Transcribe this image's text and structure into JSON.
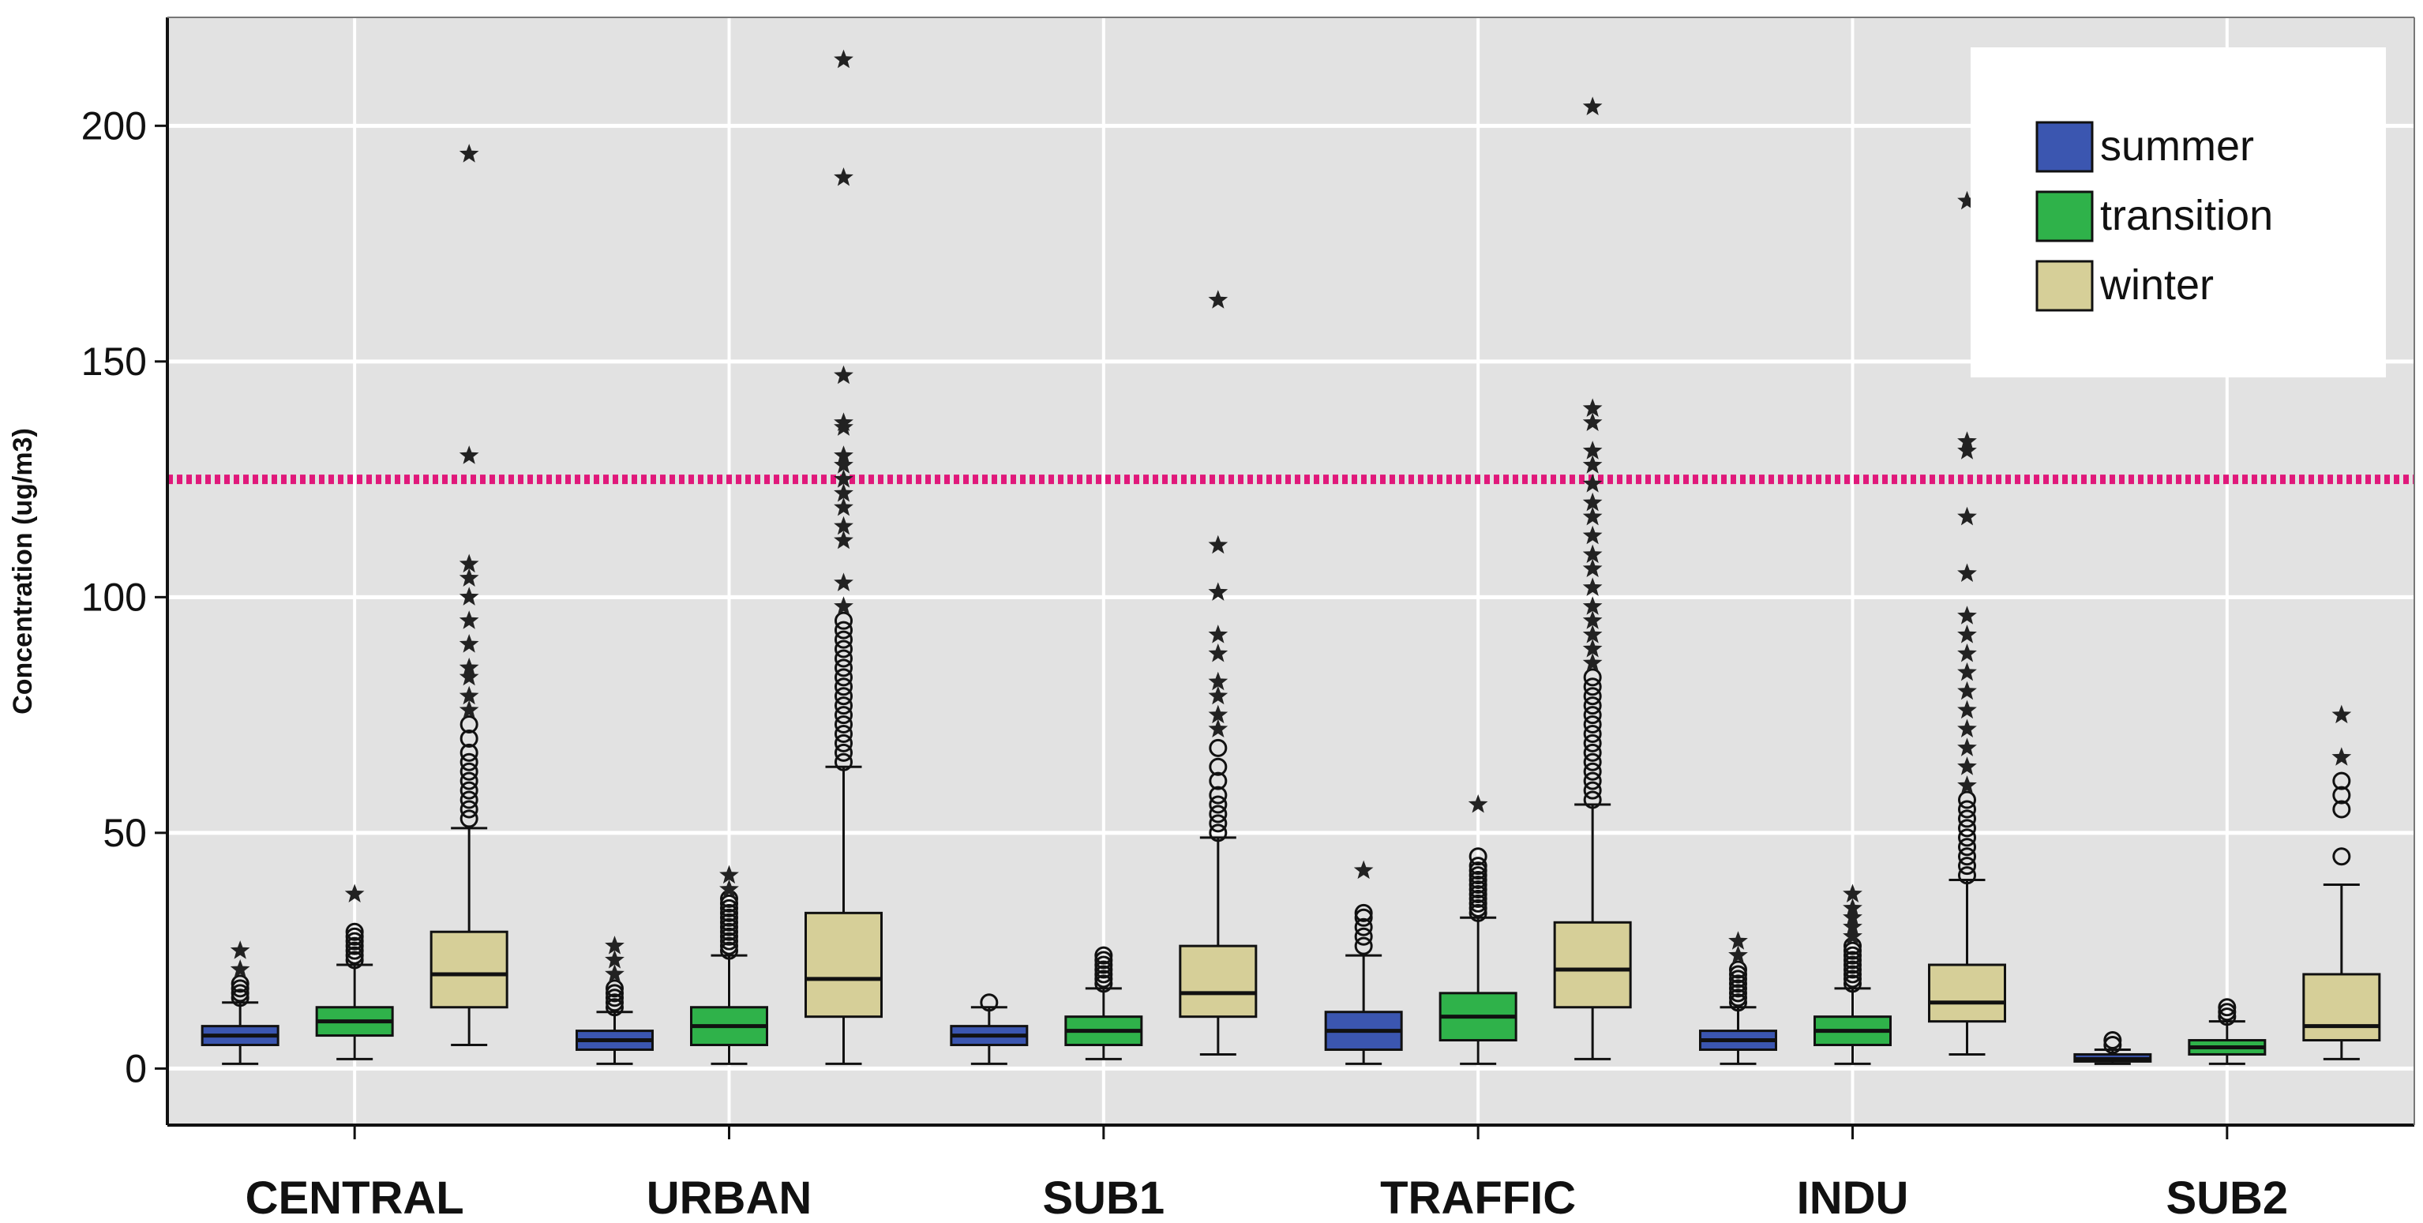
{
  "chart_data": {
    "type": "boxplot",
    "title": "",
    "xlabel": "",
    "ylabel": "Concentration (ug/m3)",
    "ylim": [
      -12,
      223
    ],
    "yticks": [
      0,
      50,
      100,
      150,
      200
    ],
    "grid": true,
    "legend_position": "top-right",
    "reference_line": {
      "value": 125,
      "color": "#e0187a",
      "style": "dotted"
    },
    "categories": [
      "CENTRAL",
      "URBAN",
      "SUB1",
      "TRAFFIC",
      "INDU",
      "SUB2"
    ],
    "colors": {
      "summer": "#3b56b0",
      "transition": "#2fb24a",
      "winter": "#d6cf98"
    },
    "series": [
      {
        "name": "summer",
        "boxes": [
          {
            "min": 1,
            "q1": 5,
            "median": 7,
            "q3": 9,
            "max": 14,
            "outliers": [
              15,
              16,
              17,
              18
            ],
            "extremes": [
              21,
              25
            ]
          },
          {
            "min": 1,
            "q1": 4,
            "median": 6,
            "q3": 8,
            "max": 12,
            "outliers": [
              13,
              14,
              15,
              16,
              17
            ],
            "extremes": [
              20,
              23,
              26
            ]
          },
          {
            "min": 1,
            "q1": 5,
            "median": 7,
            "q3": 9,
            "max": 13,
            "outliers": [
              14
            ],
            "extremes": []
          },
          {
            "min": 1,
            "q1": 4,
            "median": 8,
            "q3": 12,
            "max": 24,
            "outliers": [
              26,
              28,
              30,
              32,
              33
            ],
            "extremes": [
              42
            ]
          },
          {
            "min": 1,
            "q1": 4,
            "median": 6,
            "q3": 8,
            "max": 13,
            "outliers": [
              14,
              15,
              16,
              17,
              18,
              19,
              20,
              21
            ],
            "extremes": [
              24,
              27
            ]
          },
          {
            "min": 1,
            "q1": 1.5,
            "median": 2,
            "q3": 3,
            "max": 4,
            "outliers": [
              5,
              6
            ],
            "extremes": []
          }
        ]
      },
      {
        "name": "transition",
        "boxes": [
          {
            "min": 2,
            "q1": 7,
            "median": 10,
            "q3": 13,
            "max": 22,
            "outliers": [
              23,
              24,
              25,
              26,
              27,
              28,
              29
            ],
            "extremes": [
              37
            ]
          },
          {
            "min": 1,
            "q1": 5,
            "median": 9,
            "q3": 13,
            "max": 24,
            "outliers": [
              25,
              26,
              27,
              28,
              29,
              30,
              31,
              32,
              33,
              34,
              35,
              36
            ],
            "extremes": [
              38,
              41
            ]
          },
          {
            "min": 2,
            "q1": 5,
            "median": 8,
            "q3": 11,
            "max": 17,
            "outliers": [
              18,
              19,
              20,
              21,
              22,
              23,
              24
            ],
            "extremes": []
          },
          {
            "min": 1,
            "q1": 6,
            "median": 11,
            "q3": 16,
            "max": 32,
            "outliers": [
              33,
              34,
              35,
              36,
              37,
              38,
              39,
              40,
              41,
              42,
              43,
              45
            ],
            "extremes": [
              56
            ]
          },
          {
            "min": 1,
            "q1": 5,
            "median": 8,
            "q3": 11,
            "max": 17,
            "outliers": [
              18,
              19,
              20,
              21,
              22,
              23,
              24,
              25,
              26
            ],
            "extremes": [
              28,
              30,
              32,
              34,
              37
            ]
          },
          {
            "min": 1,
            "q1": 3,
            "median": 4.5,
            "q3": 6,
            "max": 10,
            "outliers": [
              11,
              12,
              13
            ],
            "extremes": []
          }
        ]
      },
      {
        "name": "winter",
        "boxes": [
          {
            "min": 5,
            "q1": 13,
            "median": 20,
            "q3": 29,
            "max": 51,
            "outliers": [
              53,
              55,
              57,
              59,
              61,
              63,
              65,
              67,
              70,
              73
            ],
            "extremes": [
              76,
              79,
              83,
              85,
              90,
              95,
              100,
              104,
              107,
              130,
              194
            ]
          },
          {
            "min": 1,
            "q1": 11,
            "median": 19,
            "q3": 33,
            "max": 64,
            "outliers": [
              65,
              67,
              69,
              71,
              73,
              75,
              77,
              79,
              81,
              83,
              85,
              87,
              89,
              91,
              93,
              95
            ],
            "extremes": [
              98,
              103,
              112,
              115,
              119,
              122,
              125,
              128,
              130,
              136,
              137,
              147,
              189,
              214
            ]
          },
          {
            "min": 3,
            "q1": 11,
            "median": 16,
            "q3": 26,
            "max": 49,
            "outliers": [
              50,
              52,
              54,
              56,
              58,
              61,
              64,
              68
            ],
            "extremes": [
              72,
              75,
              79,
              82,
              88,
              92,
              101,
              111,
              163
            ]
          },
          {
            "min": 2,
            "q1": 13,
            "median": 21,
            "q3": 31,
            "max": 56,
            "outliers": [
              57,
              59,
              61,
              63,
              65,
              67,
              69,
              71,
              73,
              75,
              77,
              79,
              81,
              83
            ],
            "extremes": [
              86,
              89,
              92,
              95,
              98,
              102,
              106,
              109,
              113,
              117,
              120,
              124,
              128,
              131,
              137,
              140,
              204
            ]
          },
          {
            "min": 3,
            "q1": 10,
            "median": 14,
            "q3": 22,
            "max": 40,
            "outliers": [
              41,
              43,
              45,
              47,
              49,
              51,
              53,
              55,
              57
            ],
            "extremes": [
              60,
              64,
              68,
              72,
              76,
              80,
              84,
              88,
              92,
              96,
              105,
              117,
              131,
              133,
              184
            ]
          },
          {
            "min": 2,
            "q1": 6,
            "median": 9,
            "q3": 20,
            "max": 39,
            "outliers": [
              45,
              55,
              58,
              61
            ],
            "extremes": [
              66,
              75
            ]
          }
        ]
      }
    ]
  }
}
